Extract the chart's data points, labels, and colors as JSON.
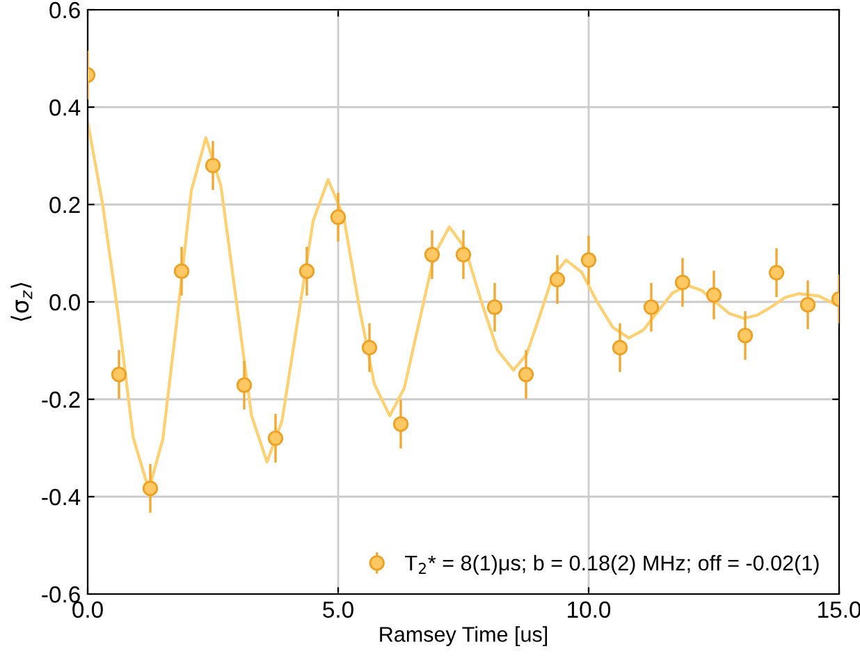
{
  "chart_data": {
    "type": "scatter",
    "xlabel": "Ramsey Time [us]",
    "ylabel": "⟨σ$_{z}$⟩",
    "xlim": [
      0,
      15
    ],
    "ylim": [
      -0.6,
      0.6
    ],
    "xticks": [
      {
        "value": 0,
        "label": "0.0"
      },
      {
        "value": 5,
        "label": "5.0"
      },
      {
        "value": 10,
        "label": "10.0"
      },
      {
        "value": 15,
        "label": "15.0"
      }
    ],
    "yticks": [
      -0.6,
      -0.4,
      -0.2,
      {
        "value": 0,
        "label": "0.0"
      },
      0.2,
      0.4,
      0.6
    ],
    "grid": true,
    "legend": "bottom right",
    "marker": "circle",
    "series": [
      {
        "type": "line",
        "color": "#ffd070",
        "line_style": "solid",
        "marker": "none",
        "x": [
          0,
          0.3,
          0.6,
          0.91,
          1.22,
          1.5,
          1.79,
          2.07,
          2.36,
          2.66,
          2.97,
          3.27,
          3.58,
          3.88,
          4.19,
          4.5,
          4.8,
          5.11,
          5.42,
          5.72,
          6.03,
          6.32,
          6.62,
          6.92,
          7.22,
          7.54,
          7.86,
          8.18,
          8.5,
          8.76,
          9.02,
          9.28,
          9.55,
          9.86,
          10.17,
          10.48,
          10.8,
          11.09,
          11.38,
          11.67,
          11.97,
          12.25,
          12.53,
          12.81,
          13.1,
          13.37,
          13.65,
          13.92,
          14.2,
          14.6,
          15
        ],
        "values": [
          0.37,
          0.2,
          -0.02,
          -0.279,
          -0.386,
          -0.282,
          -0.03,
          0.229,
          0.337,
          0.238,
          0.0,
          -0.233,
          -0.329,
          -0.244,
          -0.04,
          0.166,
          0.251,
          0.175,
          -0.01,
          -0.168,
          -0.234,
          -0.177,
          -0.04,
          0.097,
          0.154,
          0.109,
          0.0,
          -0.099,
          -0.14,
          -0.108,
          -0.03,
          0.052,
          0.086,
          0.061,
          0.0,
          -0.052,
          -0.074,
          -0.058,
          -0.02,
          0.018,
          0.034,
          0.024,
          0.0,
          -0.024,
          -0.034,
          -0.027,
          -0.01,
          0.009,
          0.017,
          0.012,
          -0.009
        ]
      },
      {
        "name": "T$_{2}$* = 8(1)μs; b = 0.18(2) MHz; off = -0.02(1)",
        "color": "#ffc862",
        "x": [
          0,
          0.625,
          1.25,
          1.875,
          2.5,
          3.125,
          3.75,
          4.375,
          5,
          5.625,
          6.25,
          6.875,
          7.5,
          8.125,
          8.75,
          9.375,
          10,
          10.625,
          11.25,
          11.875,
          12.5,
          13.125,
          13.75,
          14.375,
          15
        ],
        "values": [
          0.466,
          -0.149,
          -0.383,
          0.063,
          0.28,
          -0.171,
          -0.28,
          0.063,
          0.174,
          -0.094,
          -0.251,
          0.097,
          0.097,
          -0.011,
          -0.149,
          0.046,
          0.086,
          -0.094,
          -0.011,
          0.04,
          0.014,
          -0.069,
          0.06,
          -0.006,
          0.006
        ],
        "errors": [
          0.05,
          0.05,
          0.05,
          0.05,
          0.05,
          0.05,
          0.05,
          0.05,
          0.05,
          0.05,
          0.05,
          0.05,
          0.05,
          0.05,
          0.05,
          0.05,
          0.05,
          0.05,
          0.05,
          0.05,
          0.05,
          0.05,
          0.05,
          0.05,
          0.05
        ]
      }
    ]
  }
}
